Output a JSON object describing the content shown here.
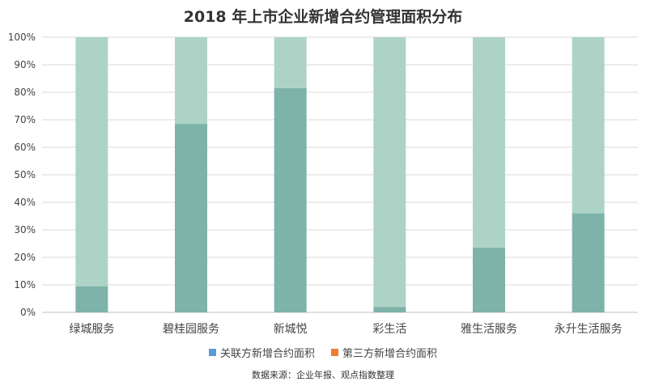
{
  "chart_data": {
    "type": "bar",
    "stacked": true,
    "title": "2018 年上市企业新增合约管理面积分布",
    "categories": [
      "绿城服务",
      "碧桂园服务",
      "新城悦",
      "彩生活",
      "雅生活服务",
      "永升生活服务"
    ],
    "series": [
      {
        "name": "关联方新增合约面积",
        "values": [
          9.5,
          68.5,
          81.5,
          2,
          23.5,
          36
        ],
        "color": "#7db3a8",
        "legend_color": "#5b9bd5"
      },
      {
        "name": "第三方新增合约面积",
        "values": [
          90.5,
          31.5,
          18.5,
          98,
          76.5,
          64
        ],
        "color": "#add3c7",
        "legend_color": "#ed7d31"
      }
    ],
    "ylim": [
      0,
      100
    ],
    "yticks": [
      "0%",
      "10%",
      "20%",
      "30%",
      "40%",
      "50%",
      "60%",
      "70%",
      "80%",
      "90%",
      "100%"
    ],
    "grid": true,
    "legend": "bottom",
    "source": "数据来源：企业年报、观点指数整理"
  }
}
